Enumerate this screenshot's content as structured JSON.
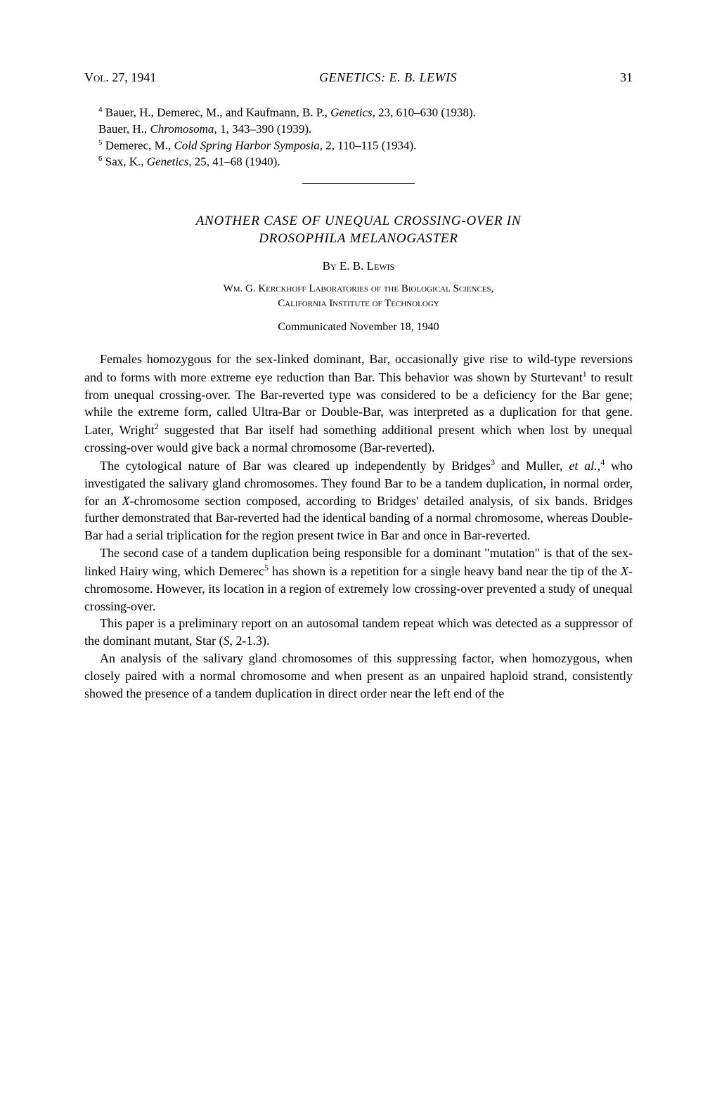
{
  "header": {
    "volume": "Vol. 27, 1941",
    "running_head": "GENETICS: E. B. LEWIS",
    "page_number": "31"
  },
  "footnotes": [
    {
      "sup": "4",
      "text": " Bauer, H., Demerec, M., and Kaufmann, B. P., ",
      "italic": "Genetics,",
      "rest": " 23, 610–630 (1938)."
    },
    {
      "sup": "",
      "text": "Bauer, H., ",
      "italic": "Chromosoma,",
      "rest": " 1, 343–390 (1939)."
    },
    {
      "sup": "5",
      "text": " Demerec, M., ",
      "italic": "Cold Spring Harbor Symposia,",
      "rest": " 2, 110–115 (1934)."
    },
    {
      "sup": "6",
      "text": " Sax, K., ",
      "italic": "Genetics,",
      "rest": " 25, 41–68 (1940)."
    }
  ],
  "article": {
    "title_line1": "ANOTHER CASE OF UNEQUAL CROSSING-OVER IN",
    "title_line2": "DROSOPHILA MELANOGASTER",
    "byline_prefix": "By ",
    "author": "E. B. Lewis",
    "affiliation_line1": "Wm. G. Kerckhoff Laboratories of the Biological Sciences,",
    "affiliation_line2": "California Institute of Technology",
    "communicated": "Communicated November 18, 1940"
  },
  "paragraphs": {
    "p1_a": "Females homozygous for the sex-linked dominant, Bar, occasionally give rise to wild-type reversions and to forms with more extreme eye reduction than Bar. This behavior was shown by Sturtevant",
    "p1_sup1": "1",
    "p1_b": " to result from unequal crossing-over. The Bar-reverted type was considered to be a deficiency for the Bar gene; while the extreme form, called Ultra-Bar or Double-Bar, was interpreted as a duplication for that gene. Later, Wright",
    "p1_sup2": "2",
    "p1_c": " suggested that Bar itself had something additional present which when lost by unequal crossing-over would give back a normal chromosome (Bar-reverted).",
    "p2_a": "The cytological nature of Bar was cleared up independently by Bridges",
    "p2_sup1": "3",
    "p2_b": " and Muller, ",
    "p2_italic": "et al.,",
    "p2_sup2": "4",
    "p2_c": " who investigated the salivary gland chromosomes. They found Bar to be a tandem duplication, in normal order, for an ",
    "p2_italic2": "X",
    "p2_d": "-chromosome section composed, according to Bridges' detailed analysis, of six bands. Bridges further demonstrated that Bar-reverted had the identical banding of a normal chromosome, whereas Double-Bar had a serial triplication for the region present twice in Bar and once in Bar-reverted.",
    "p3_a": "The second case of a tandem duplication being responsible for a dominant \"mutation\" is that of the sex-linked Hairy wing, which Demerec",
    "p3_sup1": "5",
    "p3_b": " has shown is a repetition for a single heavy band near the tip of the ",
    "p3_italic": "X",
    "p3_c": "-chromosome. However, its location in a region of extremely low crossing-over prevented a study of unequal crossing-over.",
    "p4_a": "This paper is a preliminary report on an autosomal tandem repeat which was detected as a suppressor of the dominant mutant, Star (",
    "p4_italic": "S",
    "p4_b": ", 2-1.3).",
    "p5": "An analysis of the salivary gland chromosomes of this suppressing factor, when homozygous, when closely paired with a normal chromosome and when present as an unpaired haploid strand, consistently showed the presence of a tandem duplication in direct order near the left end of the"
  }
}
